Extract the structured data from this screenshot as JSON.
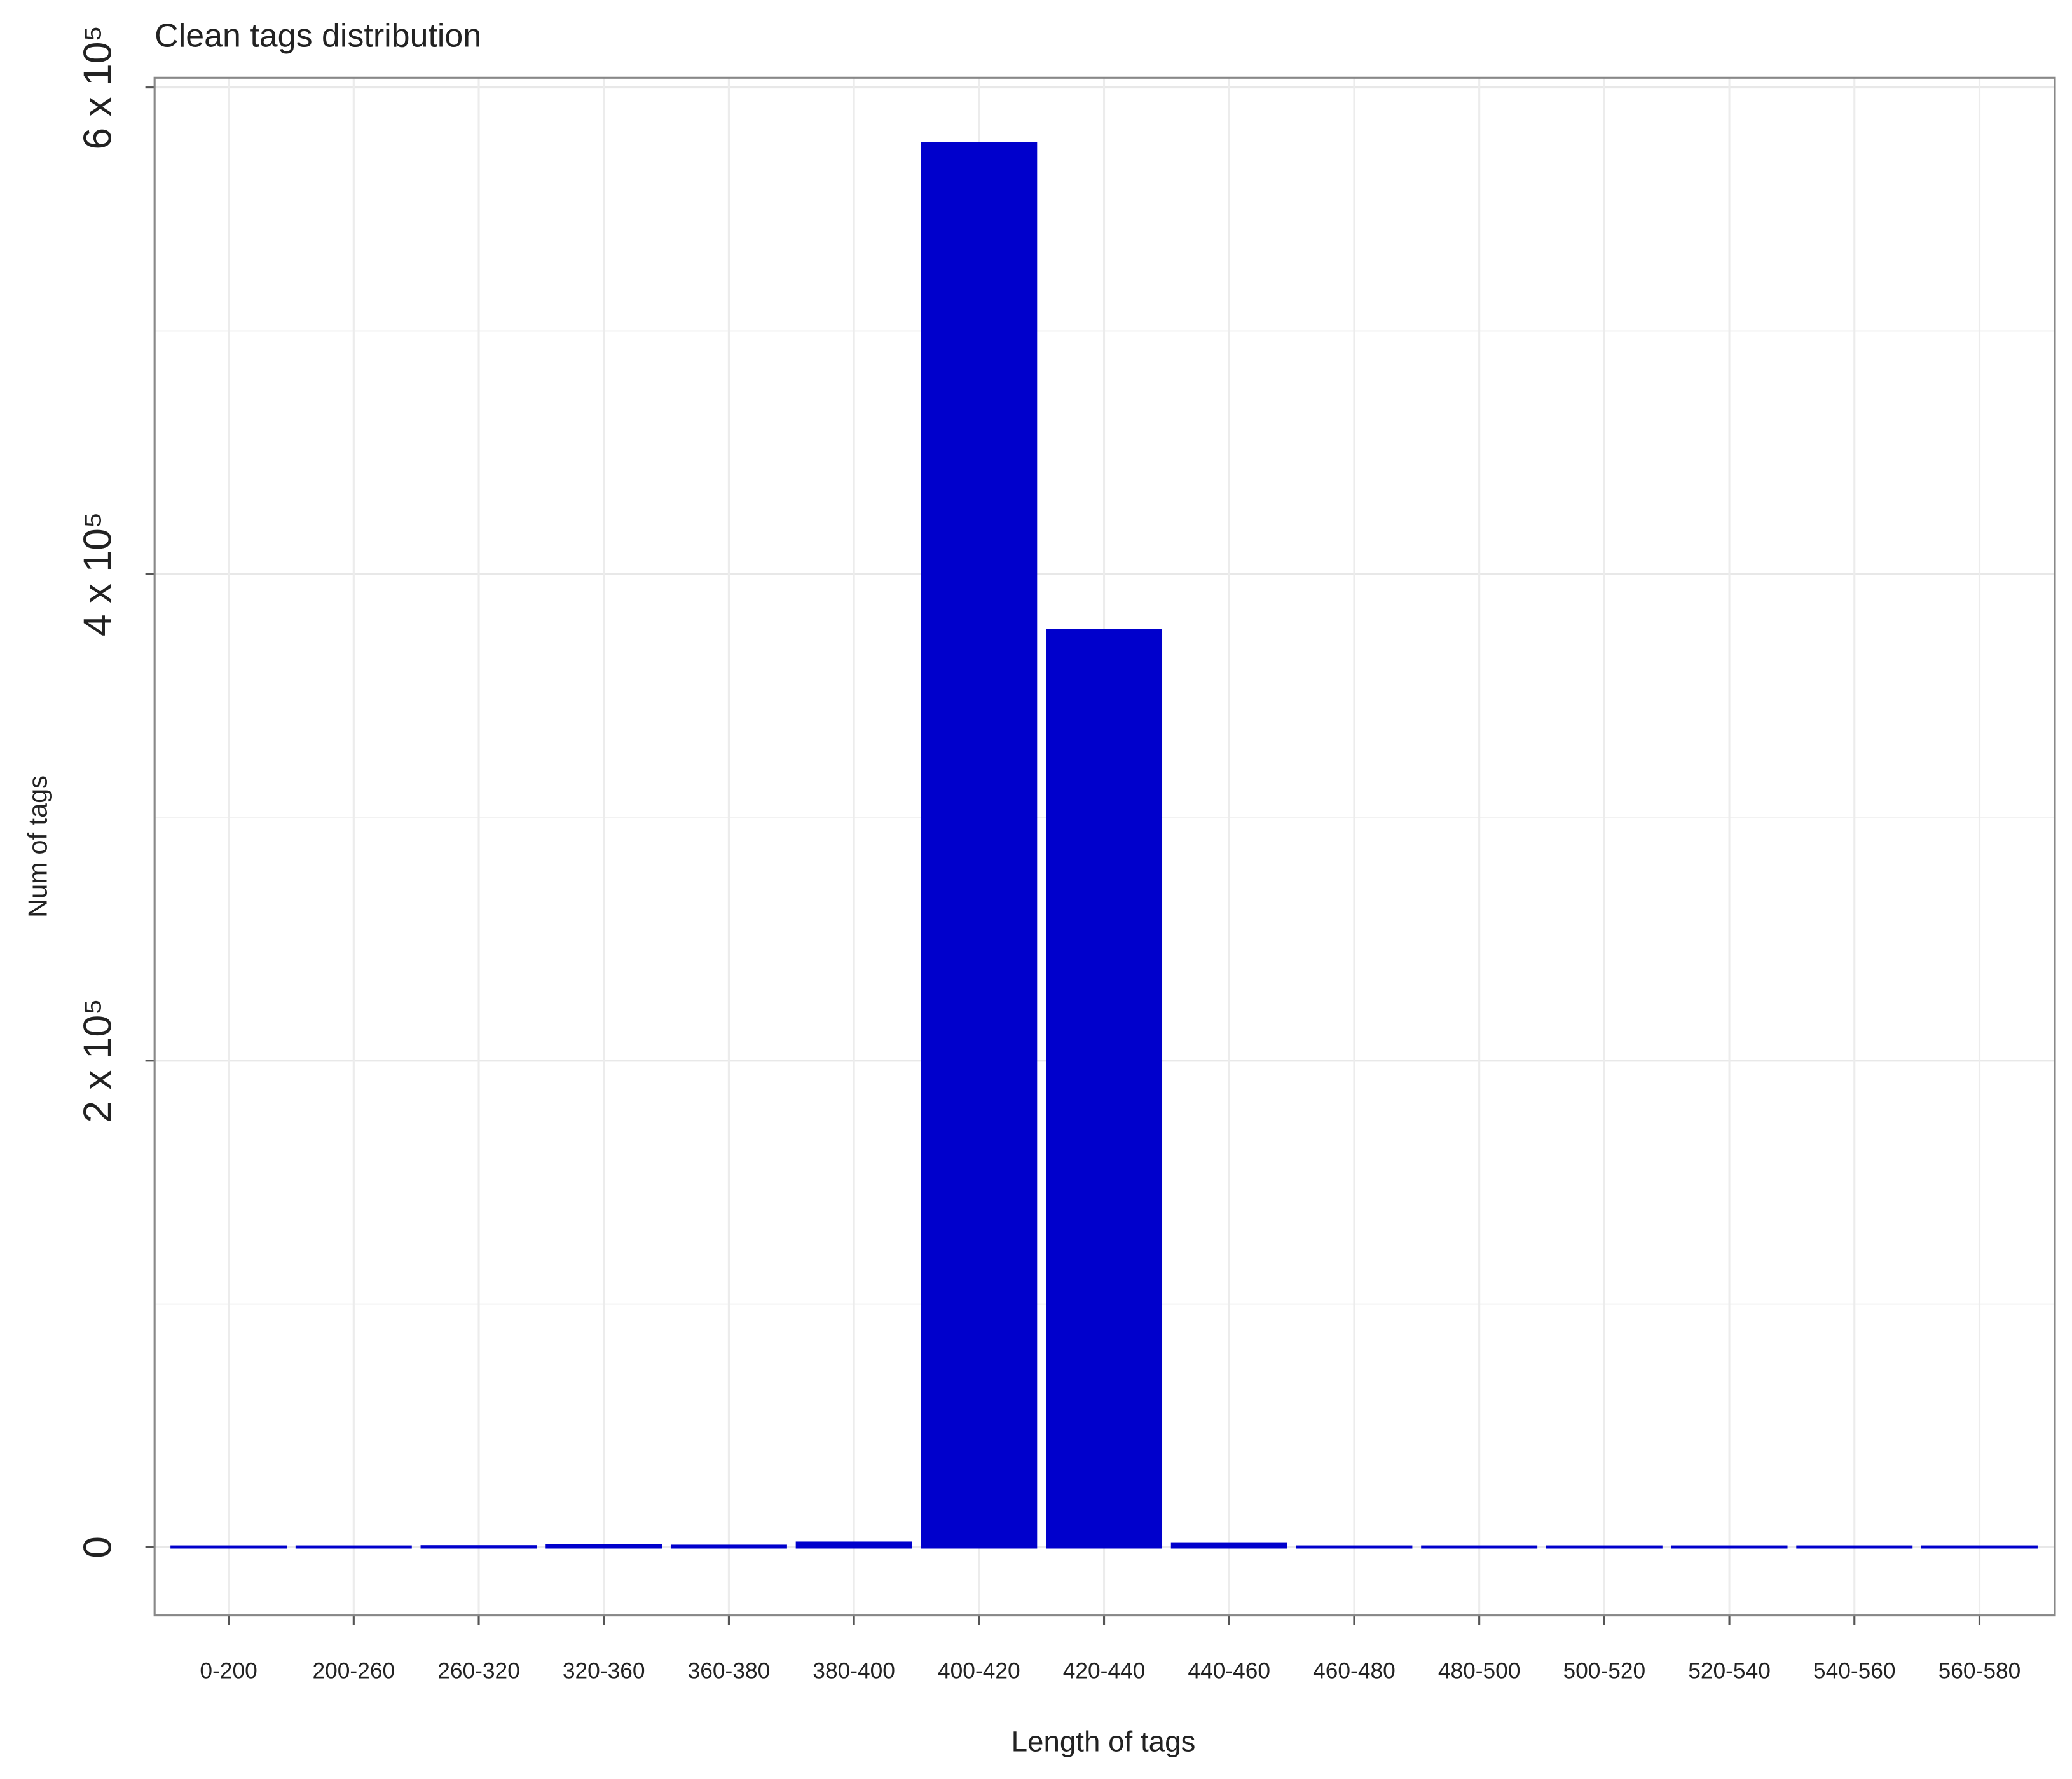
{
  "chart_data": {
    "type": "bar",
    "title": "Clean tags distribution",
    "x_label": "Length of tags",
    "y_label": "Num of tags",
    "categories": [
      "0-200",
      "200-260",
      "260-320",
      "320-360",
      "360-380",
      "380-400",
      "400-420",
      "420-440",
      "440-460",
      "460-480",
      "480-500",
      "500-520",
      "520-540",
      "540-560",
      "560-580"
    ],
    "values": [
      200,
      200,
      300,
      700,
      500,
      1800,
      577000,
      377000,
      1500,
      200,
      200,
      200,
      200,
      200,
      200
    ],
    "color": "#0000cc",
    "ylim": [
      -28000,
      604000
    ],
    "yticks": [
      0,
      {
        "value": 200000,
        "label": "2 x 10⁵"
      },
      {
        "value": 400000,
        "label": "4 x 10⁵"
      },
      {
        "value": 600000,
        "label": "6 x 10⁵"
      }
    ],
    "minor_yticks": [
      100000,
      300000,
      500000
    ],
    "grid": true
  }
}
